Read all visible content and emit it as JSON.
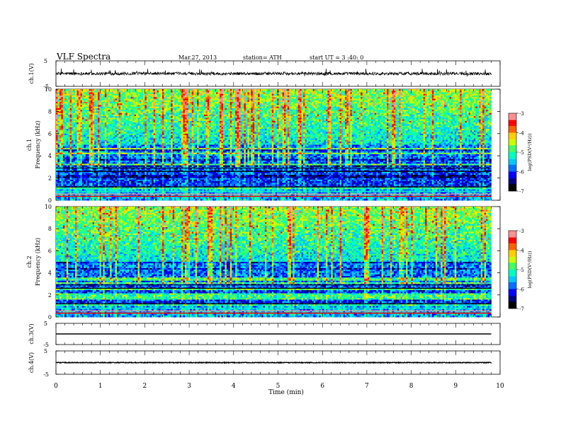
{
  "header": {
    "title": "VLF Spectra",
    "date": "Mar.27, 2013",
    "station": "station= ATH",
    "start": "start UT = 3 :40: 0"
  },
  "colors": {
    "frame": "#000000",
    "colormap": [
      "#000000",
      "#00007f",
      "#0000ff",
      "#0070ff",
      "#00c8ff",
      "#00ffc0",
      "#40ff60",
      "#c8ff00",
      "#ffd000",
      "#ff6000",
      "#ff0000",
      "#ff9090",
      "#ffffff"
    ]
  },
  "chart_data": [
    {
      "type": "line",
      "panel": "ch1-waveform",
      "ylabel": "ch.1(V)",
      "ylim": [
        -5,
        5
      ],
      "yticks": [
        "5",
        "-5"
      ],
      "x_range": [
        0,
        9.8
      ],
      "description_values": {
        "baseline": 0,
        "noise_amplitude": 0.6,
        "spike_max": 1.5
      }
    },
    {
      "type": "heatmap",
      "panel": "ch1-spectrogram",
      "ylabel": "ch.1\nFrequency (kHz)",
      "ylabel_lines": [
        "ch.1",
        "Frequency (kHz)"
      ],
      "ylim": [
        0,
        10
      ],
      "yticks": [
        "0",
        "2",
        "4",
        "6",
        "8",
        "10"
      ],
      "x_range": [
        0,
        9.8
      ],
      "colorbar": {
        "label": "log(PSD(V²/Hz))",
        "range": [
          -7,
          -3
        ],
        "ticks": [
          "-3",
          "-4",
          "-5",
          "-6",
          "-7"
        ]
      }
    },
    {
      "type": "heatmap",
      "panel": "ch2-spectrogram",
      "ylabel": "ch.2\nFrequency (kHz)",
      "ylabel_lines": [
        "ch.2",
        "Frequency (kHz)"
      ],
      "ylim": [
        0,
        10
      ],
      "yticks": [
        "0",
        "2",
        "4",
        "6",
        "8",
        "10"
      ],
      "x_range": [
        0,
        9.8
      ],
      "colorbar": {
        "label": "log(PSD(V²/Hz))",
        "range": [
          -7,
          -3
        ],
        "ticks": [
          "-3",
          "-4",
          "-5",
          "-6",
          "-7"
        ]
      }
    },
    {
      "type": "line",
      "panel": "ch3-waveform",
      "ylabel": "ch.3(V)",
      "ylim": [
        -5,
        5
      ],
      "yticks": [
        "5",
        "-5"
      ],
      "x_range": [
        0,
        9.8
      ],
      "description_values": {
        "baseline": 0
      }
    },
    {
      "type": "line",
      "panel": "ch4-waveform",
      "ylabel": "ch.4(V)",
      "ylim": [
        -5,
        5
      ],
      "yticks": [
        "5",
        "-5"
      ],
      "x_range": [
        0,
        9.8
      ],
      "description_values": {
        "baseline": 0,
        "noise_amplitude": 0.15
      }
    }
  ],
  "xaxis": {
    "label": "Time (min)",
    "range": [
      0,
      10
    ],
    "ticks": [
      "0",
      "1",
      "2",
      "3",
      "4",
      "5",
      "6",
      "7",
      "8",
      "9",
      "10"
    ]
  }
}
